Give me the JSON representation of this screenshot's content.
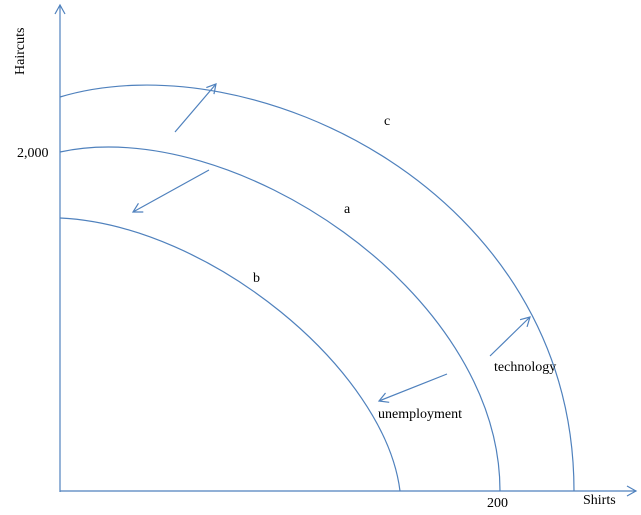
{
  "axes": {
    "y_label": "Haircuts",
    "x_label": "Shirts",
    "y_tick": "2,000",
    "x_tick": "200"
  },
  "curves": {
    "a": "a",
    "b": "b",
    "c": "c"
  },
  "annotations": {
    "technology": "technology",
    "unemployment": "unemployment"
  },
  "colors": {
    "line": "#4f81bd",
    "text": "#000000"
  }
}
